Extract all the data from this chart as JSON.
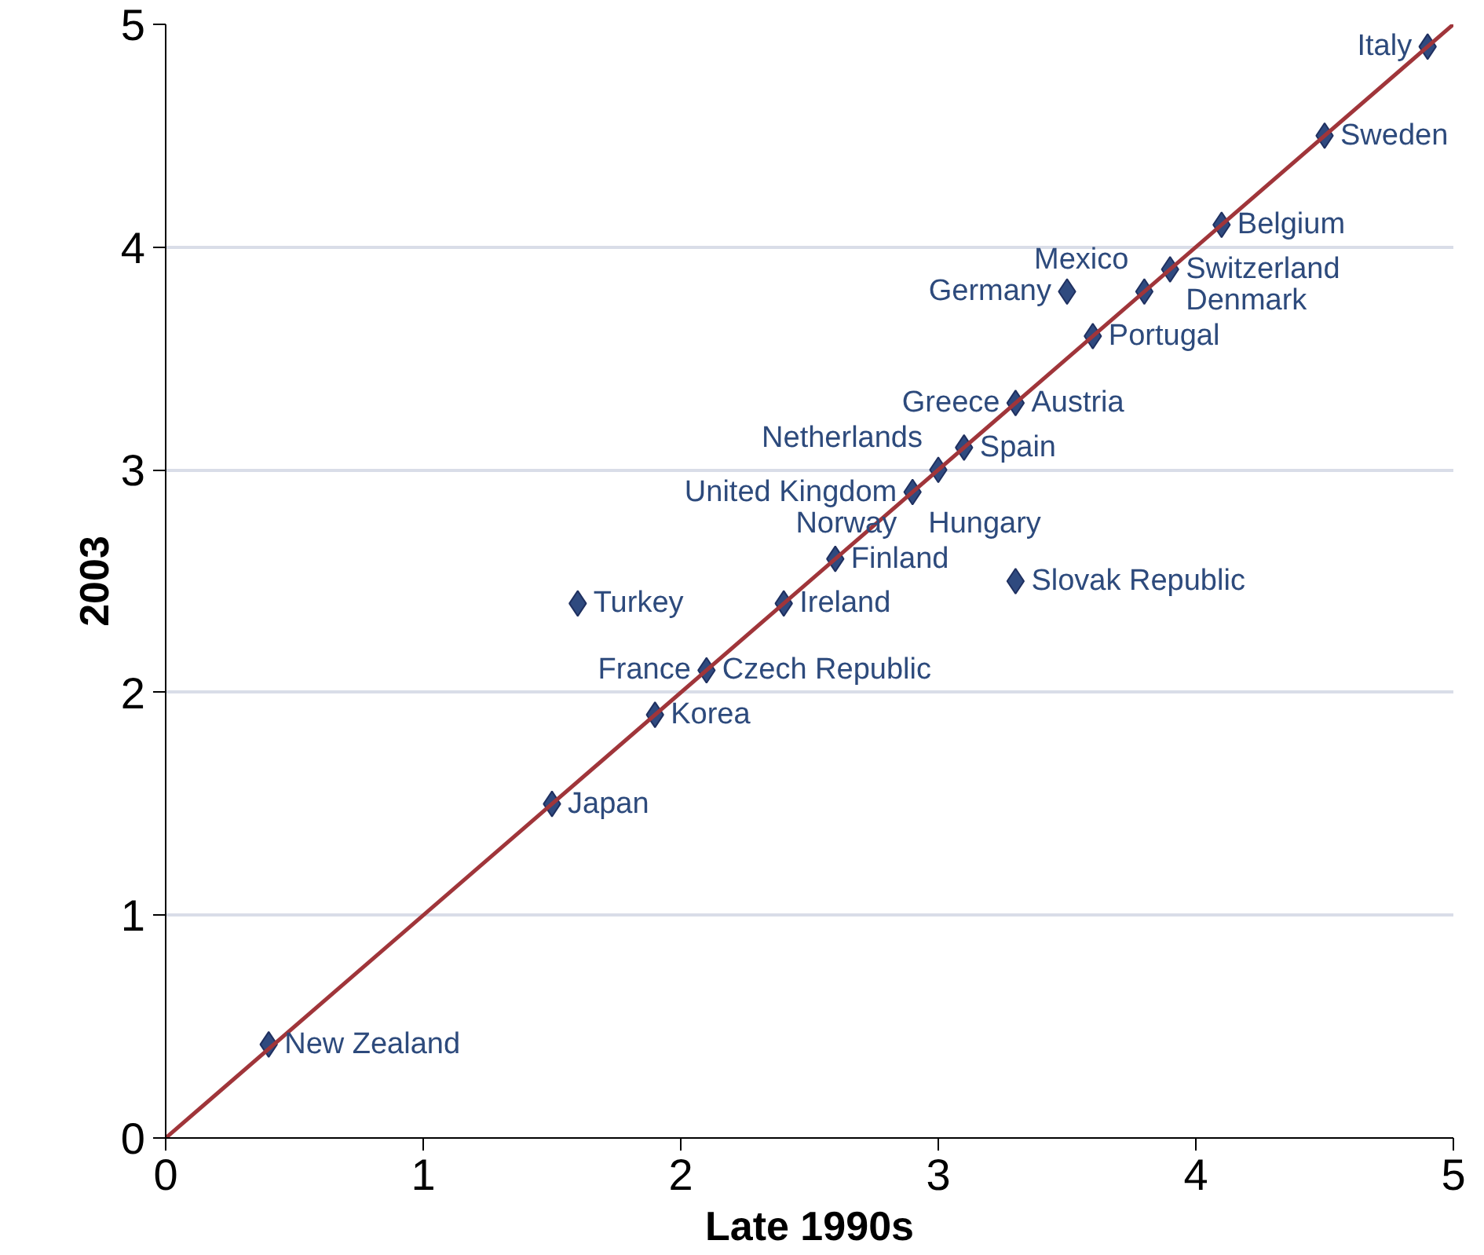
{
  "chart_data": {
    "type": "scatter",
    "xlabel": "Late 1990s",
    "ylabel": "2003",
    "xlim": [
      0,
      5
    ],
    "ylim": [
      0,
      5
    ],
    "xticks": [
      0,
      1,
      2,
      3,
      4,
      5
    ],
    "yticks": [
      0,
      1,
      2,
      3,
      4,
      5
    ],
    "grid": "y",
    "marker": "diamond",
    "series": [
      {
        "color": "#2f4a7f",
        "x": [
          0.4,
          1.5,
          1.9,
          1.6,
          2.1,
          2.4,
          2.6,
          3.3,
          2.9,
          3.0,
          3.1,
          3.3,
          3.6,
          3.5,
          3.8,
          3.9,
          4.1,
          4.5,
          4.9
        ],
        "values": [
          0.42,
          1.5,
          1.9,
          2.4,
          2.1,
          2.4,
          2.6,
          2.5,
          2.9,
          3.0,
          3.1,
          3.3,
          3.6,
          3.8,
          3.8,
          3.9,
          4.1,
          4.5,
          4.9
        ]
      },
      {
        "type": "line",
        "color": "#a0353a",
        "x": [
          0,
          5
        ],
        "values": [
          0,
          5
        ],
        "marker": "none"
      }
    ],
    "annotations": [
      {
        "text": "New Zealand",
        "x": 0.4,
        "y": 0.42
      },
      {
        "text": "Japan",
        "x": 1.5,
        "y": 1.5
      },
      {
        "text": "Korea",
        "x": 1.9,
        "y": 1.9
      },
      {
        "text": "Turkey",
        "x": 1.6,
        "y": 2.4
      },
      {
        "text": "Czech Republic",
        "x": 2.1,
        "y": 2.1
      },
      {
        "text": "France",
        "x": 2.1,
        "y": 2.1
      },
      {
        "text": "Ireland",
        "x": 2.4,
        "y": 2.4
      },
      {
        "text": "Finland",
        "x": 2.6,
        "y": 2.6
      },
      {
        "text": "Slovak Republic",
        "x": 3.3,
        "y": 2.5
      },
      {
        "text": "United Kingdom",
        "x": 2.9,
        "y": 2.9
      },
      {
        "text": "Hungary",
        "x": 2.9,
        "y": 2.9
      },
      {
        "text": "Norway",
        "x": 2.9,
        "y": 2.9
      },
      {
        "text": "Netherlands",
        "x": 3.0,
        "y": 3.0
      },
      {
        "text": "Spain",
        "x": 3.1,
        "y": 3.1
      },
      {
        "text": "Austria",
        "x": 3.3,
        "y": 3.3
      },
      {
        "text": "Greece",
        "x": 3.3,
        "y": 3.3
      },
      {
        "text": "Portugal",
        "x": 3.6,
        "y": 3.6
      },
      {
        "text": "Germany",
        "x": 3.5,
        "y": 3.8
      },
      {
        "text": "Mexico",
        "x": 3.8,
        "y": 3.8
      },
      {
        "text": "Switzerland",
        "x": 3.9,
        "y": 3.9
      },
      {
        "text": "Denmark",
        "x": 3.9,
        "y": 3.9
      },
      {
        "text": "Belgium",
        "x": 4.1,
        "y": 4.1
      },
      {
        "text": "Sweden",
        "x": 4.5,
        "y": 4.5
      },
      {
        "text": "Italy",
        "x": 4.9,
        "y": 4.9
      }
    ]
  }
}
